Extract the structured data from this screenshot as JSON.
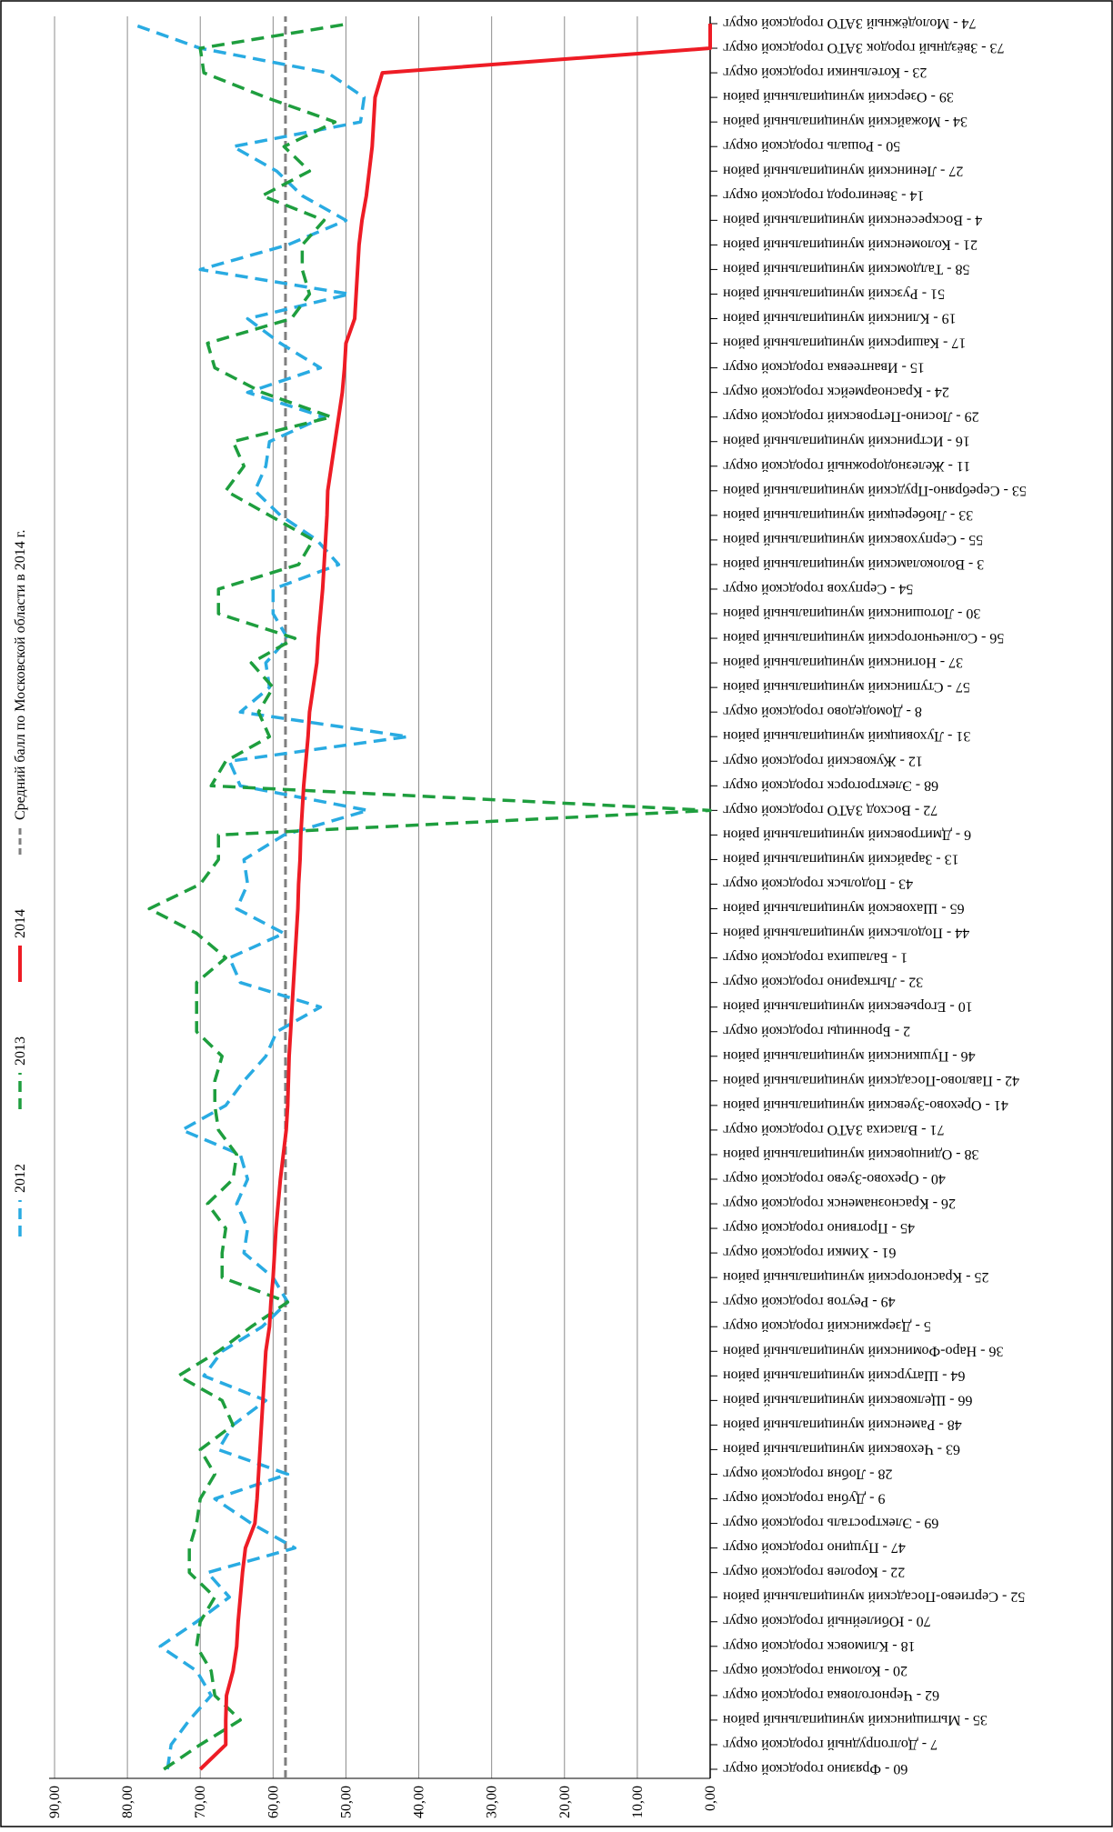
{
  "chart_data": {
    "type": "line",
    "categories": [
      "60 - Фрязино городской округ",
      "7 - Долгопрудный городской округ",
      "35 - Мытищинский муниципальный район",
      "62 - Черноголовка городской округ",
      "20 - Коломна городской округ",
      "18 - Климовск городской округ",
      "70 - Юбилейный городской округ",
      "52 - Сергиево-Посадский муниципальный район",
      "22 - Королев городской округ",
      "47 - Пущино городской округ",
      "69 - Электросталь городской округ",
      "9 - Дубна городской округ",
      "28 - Лобня городской округ",
      "63 - Чеховский муниципальный район",
      "48 - Раменский муниципальный район",
      "66 - Щелковский муниципальный район",
      "64 - Шатурский муниципальный район",
      "36 - Наро-Фоминский муниципальный район",
      "5 - Дзержинский городской округ",
      "49 - Реутов городской округ",
      "25 - Красногорский муниципальный район",
      "61 - Химки городской округ",
      "45 - Протвино городской округ",
      "26 - Краснознаменск городской округ",
      "40 - Орехово-Зуево городской округ",
      "38 - Одинцовский муниципальный район",
      "71 - Власиха ЗАТО городской округ",
      "41 - Орехово-Зуевский муниципальный район",
      "42 - Павлово-Посадский муниципальный район",
      "46 - Пушкинский муниципальный район",
      "2 - Бронницы городской округ",
      "10 - Егорьевский муниципальный район",
      "32 - Лыткарино городской округ",
      "1 - Балашиха городской округ",
      "44 - Подольский муниципальный район",
      "65 - Шаховской муниципальный район",
      "43 - Подольск городской округ",
      "13 - Зарайский муниципальный район",
      "6 - Дмитровский муниципальный район",
      "72 - Восход ЗАТО городской округ",
      "68 - Электрогорск городской округ",
      "12 - Жуковский городской округ",
      "31 - Луховицкий муниципальный район",
      "8 - Домодедово городской округ",
      "57 - Ступинский муниципальный район",
      "37 - Ногинский муниципальный район",
      "56 - Солнечногорский муниципальный район",
      "30 - Лотошинский муниципальный район",
      "54 - Серпухов городской округ",
      "3 - Волоколамский муниципальный район",
      "55 - Серпуховский муниципальный район",
      "33 - Люберецкий муниципальный район",
      "53 - Серебряно-Прудский муниципальный район",
      "11 - Железнодорожный городской округ",
      "16 - Истринский муниципальный район",
      "29 - Лосино-Петровский городской округ",
      "24 - Красноармейск городской округ",
      "15 - Ивантеевка городской округ",
      "17 - Каширский муниципальный район",
      "19 - Клинский муниципальный район",
      "51 - Рузский муниципальный район",
      "58 - Талдомский муниципальный район",
      "21 - Коломенский муниципальный район",
      "4 - Воскресенский муниципальный район",
      "14 - Звенигород городской округ",
      "27 - Ленинский муниципальный район",
      "50 - Рошаль городской округ",
      "34 - Можайский муниципальный район",
      "39 - Озерский муниципальный район",
      "23 - Котельники городской округ",
      "73 - Звёздный городок ЗАТО городской округ",
      "74 - Молодёжный ЗАТО городской округ"
    ],
    "series": [
      {
        "name": "2012",
        "color": "#29abe2",
        "dash": "dashed",
        "values": [
          74.5,
          74,
          71.5,
          68.5,
          70.5,
          75.5,
          70.5,
          66,
          69,
          57,
          63,
          68,
          58,
          67.5,
          65.5,
          61,
          69.5,
          67,
          61.5,
          58,
          60,
          64,
          63.5,
          65,
          63.5,
          64.5,
          72.5,
          66.5,
          64,
          61,
          59.5,
          53.5,
          64.5,
          66,
          58.5,
          65,
          63.5,
          64,
          58.5,
          47,
          64.5,
          66,
          41.5,
          64.5,
          60.5,
          61,
          58,
          60,
          60,
          51,
          54,
          59,
          62.5,
          61,
          60.5,
          53,
          63.5,
          53.5,
          59,
          63.5,
          49.5,
          70,
          58,
          50,
          56,
          59.5,
          65.5,
          48,
          47.5,
          52.5,
          70,
          79.5
        ]
      },
      {
        "name": "2013",
        "color": "#1e9e3e",
        "dash": "dashed",
        "values": [
          75,
          70,
          64.5,
          68,
          68.5,
          70.5,
          70,
          68,
          71.5,
          71.5,
          70.5,
          70,
          68,
          70,
          65.5,
          67,
          73,
          67.5,
          63,
          58,
          67,
          67,
          66.5,
          69,
          65.5,
          65,
          67.5,
          68,
          68,
          67,
          70.5,
          70.5,
          70.5,
          66.5,
          70.5,
          77,
          70,
          67.5,
          67.5,
          0,
          68.5,
          66.5,
          60.5,
          62,
          60,
          63,
          57,
          67.5,
          67.5,
          56.5,
          54.5,
          60.5,
          66.5,
          64,
          65.5,
          52,
          61.5,
          68,
          69,
          57.5,
          55,
          56,
          56,
          53,
          61.5,
          55,
          58.5,
          51.5,
          61,
          69.5,
          70,
          49.5
        ]
      },
      {
        "name": "2014",
        "color": "#ee1c25",
        "dash": "solid",
        "values": [
          70,
          66.5,
          66.5,
          66.4,
          65.5,
          65,
          64.8,
          64.5,
          64.2,
          63.8,
          62.5,
          62.2,
          62,
          61.8,
          61.6,
          61.4,
          61.2,
          61,
          60.5,
          60.3,
          60,
          59.8,
          59.6,
          59.3,
          59,
          58.6,
          58.2,
          58,
          57.9,
          57.8,
          57.6,
          57.4,
          57.2,
          57,
          56.8,
          56.6,
          56.5,
          56.3,
          56.2,
          56,
          55.8,
          55.5,
          55.2,
          55,
          54.5,
          54,
          53.8,
          53.5,
          53.2,
          53,
          52.8,
          52.6,
          52.5,
          52,
          51.5,
          51,
          50.5,
          50.2,
          50,
          48.8,
          48.6,
          48.4,
          48.2,
          47.8,
          47.2,
          46.8,
          46.4,
          46.2,
          46,
          45,
          0,
          0
        ]
      }
    ],
    "reference_line": {
      "name": "Средний балл по Московской области в 2014 г.",
      "value": 58.3,
      "color": "#7f7f7f"
    },
    "ylim": [
      0,
      90
    ],
    "yticks": [
      {
        "value": 0,
        "label": "0,00"
      },
      {
        "value": 10,
        "label": "10,00"
      },
      {
        "value": 20,
        "label": "20,00"
      },
      {
        "value": 30,
        "label": "30,00"
      },
      {
        "value": 40,
        "label": "40,00"
      },
      {
        "value": 50,
        "label": "50,00"
      },
      {
        "value": 60,
        "label": "60,00"
      },
      {
        "value": 70,
        "label": "70,00"
      },
      {
        "value": 80,
        "label": "80,00"
      },
      {
        "value": 90,
        "label": "90,00"
      }
    ],
    "grid": true
  }
}
